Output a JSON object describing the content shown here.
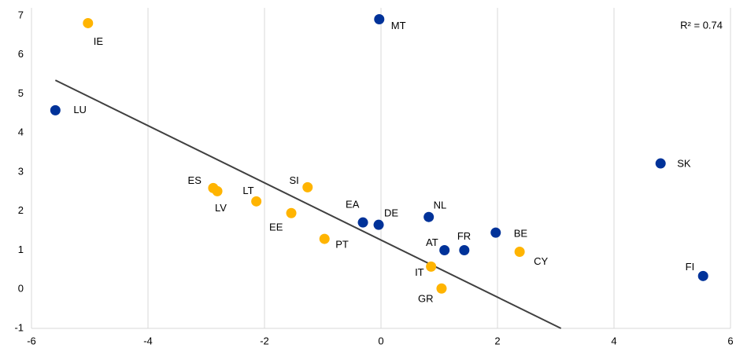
{
  "chart_data": {
    "type": "scatter",
    "annotation": "R² = 0.74",
    "xlim": [
      -6,
      6
    ],
    "xticks": [
      -6,
      -4,
      -2,
      0,
      2,
      4,
      6
    ],
    "ylim": [
      -1,
      7
    ],
    "yticks": [
      -1,
      0,
      1,
      2,
      3,
      4,
      5,
      6,
      7
    ],
    "grid": true,
    "trendline": {
      "color": "#404040",
      "x": [
        -5.59,
        3.09
      ],
      "y": [
        5.35,
        -1.0
      ]
    },
    "series": [
      {
        "color": "#003299",
        "labels": [
          "MT",
          "LU",
          "SK",
          "EA",
          "DE",
          "NL",
          "BE",
          "AT",
          "FR",
          "FI"
        ],
        "x": [
          -0.03,
          -5.59,
          4.8,
          -0.31,
          -0.04,
          0.82,
          1.97,
          1.09,
          1.43,
          5.53
        ],
        "y": [
          6.91,
          4.58,
          3.22,
          1.71,
          1.65,
          1.85,
          1.45,
          1.0,
          1.0,
          0.34
        ]
      },
      {
        "color": "#FFB400",
        "labels": [
          "IE",
          "ES",
          "LV",
          "LT",
          "SI",
          "EE",
          "PT",
          "CY",
          "IT",
          "GR"
        ],
        "x": [
          -5.03,
          -2.88,
          -2.81,
          -2.14,
          -1.26,
          -1.54,
          -0.97,
          2.38,
          0.86,
          1.04
        ],
        "y": [
          6.81,
          2.59,
          2.51,
          2.25,
          2.61,
          1.95,
          1.29,
          0.96,
          0.58,
          0.02
        ]
      }
    ]
  }
}
